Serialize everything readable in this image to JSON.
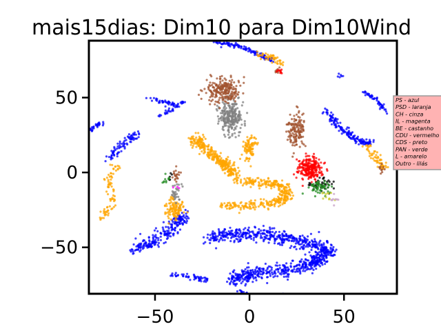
{
  "chart_data": {
    "type": "scatter",
    "title": "mais15dias: Dim10 para Dim10Wind",
    "xlabel": "",
    "ylabel": "",
    "xlim": [
      -85,
      78
    ],
    "ylim": [
      -81,
      88
    ],
    "xticks": [
      -50,
      0,
      50
    ],
    "yticks": [
      -50,
      0,
      50
    ],
    "xtick_labels": [
      "−50",
      "0",
      "50"
    ],
    "ytick_labels": [
      "−50",
      "0",
      "50"
    ],
    "grid": false,
    "legend_position": "right",
    "legend_background": "#ffb3b3",
    "series": [
      {
        "name": "PS - azul",
        "color": "#0000ff",
        "clusters": [
          {
            "kind": "arc",
            "points": [
              [
                -20,
                88
              ],
              [
                -5,
                84
              ],
              [
                5,
                79
              ],
              [
                12,
                75
              ]
            ],
            "n": 120,
            "spread": 1.2
          },
          {
            "kind": "arc",
            "points": [
              [
                -55,
                50
              ],
              [
                -45,
                47
              ],
              [
                -38,
                45
              ]
            ],
            "n": 40,
            "spread": 1.0
          },
          {
            "kind": "arc",
            "points": [
              [
                -48,
                38
              ],
              [
                -40,
                42
              ],
              [
                -35,
                47
              ]
            ],
            "n": 35,
            "spread": 1.0
          },
          {
            "kind": "arc",
            "points": [
              [
                -85,
                28
              ],
              [
                -80,
                32
              ],
              [
                -78,
                33
              ]
            ],
            "n": 30,
            "spread": 1.0
          },
          {
            "kind": "arc",
            "points": [
              [
                -75,
                8
              ],
              [
                -70,
                15
              ],
              [
                -64,
                22
              ],
              [
                -60,
                26
              ]
            ],
            "n": 80,
            "spread": 2.2
          },
          {
            "kind": "arc",
            "points": [
              [
                -62,
                -52
              ],
              [
                -50,
                -46
              ],
              [
                -40,
                -36
              ],
              [
                -34,
                -28
              ]
            ],
            "n": 220,
            "spread": 3.5
          },
          {
            "kind": "arc",
            "points": [
              [
                -22,
                -44
              ],
              [
                0,
                -40
              ],
              [
                25,
                -45
              ],
              [
                42,
                -52
              ],
              [
                30,
                -63
              ],
              [
                5,
                -67
              ],
              [
                -10,
                -72
              ]
            ],
            "n": 900,
            "spread": 3.8
          },
          {
            "kind": "arc",
            "points": [
              [
                -43,
                -68
              ],
              [
                -30,
                -70
              ],
              [
                -22,
                -72
              ]
            ],
            "n": 50,
            "spread": 1.5
          },
          {
            "kind": "arc",
            "points": [
              [
                -6,
                -80
              ],
              [
                10,
                -82
              ],
              [
                18,
                -82
              ]
            ],
            "n": 40,
            "spread": 1.3
          },
          {
            "kind": "arc",
            "points": [
              [
                40,
                42
              ],
              [
                45,
                33
              ],
              [
                52,
                26
              ],
              [
                58,
                21
              ],
              [
                64,
                20
              ]
            ],
            "n": 150,
            "spread": 1.8
          },
          {
            "kind": "arc",
            "points": [
              [
                60,
                54
              ],
              [
                68,
                48
              ],
              [
                72,
                40
              ]
            ],
            "n": 50,
            "spread": 1.0
          },
          {
            "kind": "blob",
            "center": [
              48,
              65
            ],
            "rx": 1.2,
            "ry": 1.2,
            "n": 6
          }
        ]
      },
      {
        "name": "PSD - laranja",
        "color": "#ffa500",
        "clusters": [
          {
            "kind": "arc",
            "points": [
              [
                -30,
                23
              ],
              [
                -25,
                18
              ],
              [
                -18,
                10
              ],
              [
                -13,
                5
              ],
              [
                -8,
                -2
              ]
            ],
            "n": 320,
            "spread": 3.0
          },
          {
            "kind": "arc",
            "points": [
              [
                -8,
                -5
              ],
              [
                10,
                -7
              ],
              [
                18,
                -10
              ],
              [
                20,
                -15
              ],
              [
                16,
                -20
              ],
              [
                0,
                -22
              ],
              [
                -15,
                -23
              ]
            ],
            "n": 360,
            "spread": 2.6
          },
          {
            "kind": "arc",
            "points": [
              [
                -78,
                -32
              ],
              [
                -72,
                -20
              ],
              [
                -75,
                -5
              ],
              [
                -70,
                5
              ]
            ],
            "n": 80,
            "spread": 2.0
          },
          {
            "kind": "blob",
            "center": [
              0,
              16
            ],
            "rx": 3.5,
            "ry": 7,
            "n": 90
          },
          {
            "kind": "blob",
            "center": [
              -40,
              -24
            ],
            "rx": 4.5,
            "ry": 6,
            "n": 110
          },
          {
            "kind": "arc",
            "points": [
              [
                5,
                79
              ],
              [
                12,
                77
              ],
              [
                18,
                72
              ]
            ],
            "n": 50,
            "spread": 1.8
          },
          {
            "kind": "arc",
            "points": [
              [
                62,
                19
              ],
              [
                67,
                10
              ],
              [
                71,
                2
              ]
            ],
            "n": 60,
            "spread": 2.2
          }
        ]
      },
      {
        "name": "CH - cinza",
        "color": "#808080",
        "clusters": [
          {
            "kind": "blob",
            "center": [
              -10,
              37
            ],
            "rx": 6,
            "ry": 11,
            "n": 260
          },
          {
            "kind": "blob",
            "center": [
              -39,
              -13
            ],
            "rx": 3,
            "ry": 6,
            "n": 30
          }
        ]
      },
      {
        "name": "IL - magenta",
        "color": "#ff00ff",
        "clusters": [
          {
            "kind": "blob",
            "center": [
              -38,
              -10
            ],
            "rx": 1.5,
            "ry": 2,
            "n": 3
          }
        ]
      },
      {
        "name": "BE - castanho",
        "color": "#a0522d",
        "clusters": [
          {
            "kind": "blob",
            "center": [
              -14,
              55
            ],
            "rx": 8,
            "ry": 7,
            "n": 220
          },
          {
            "kind": "blob",
            "center": [
              25,
              28
            ],
            "rx": 4,
            "ry": 11,
            "n": 140
          },
          {
            "kind": "blob",
            "center": [
              -39,
              -2
            ],
            "rx": 2.5,
            "ry": 4,
            "n": 20
          },
          {
            "kind": "blob",
            "center": [
              15,
              68
            ],
            "rx": 2,
            "ry": 2,
            "n": 10
          },
          {
            "kind": "blob",
            "center": [
              70,
              3
            ],
            "rx": 2,
            "ry": 3,
            "n": 10
          }
        ]
      },
      {
        "name": "CDU - vermelho",
        "color": "#ff0000",
        "clusters": [
          {
            "kind": "blob",
            "center": [
              32,
              3
            ],
            "rx": 6,
            "ry": 7,
            "n": 240
          },
          {
            "kind": "blob",
            "center": [
              16,
              68
            ],
            "rx": 2,
            "ry": 2,
            "n": 10
          }
        ]
      },
      {
        "name": "CDS - preto",
        "color": "#000000",
        "clusters": [
          {
            "kind": "blob",
            "center": [
              38,
              -8
            ],
            "rx": 5,
            "ry": 4,
            "n": 45
          },
          {
            "kind": "blob",
            "center": [
              -42,
              -5
            ],
            "rx": 2,
            "ry": 3,
            "n": 5
          }
        ]
      },
      {
        "name": "PAN - verde",
        "color": "#228b22",
        "clusters": [
          {
            "kind": "blob",
            "center": [
              37,
              -10
            ],
            "rx": 5,
            "ry": 4,
            "n": 55
          },
          {
            "kind": "blob",
            "center": [
              -44,
              -5
            ],
            "rx": 2.5,
            "ry": 3,
            "n": 10
          }
        ]
      },
      {
        "name": "L - amarelo",
        "color": "#cccc33",
        "clusters": [
          {
            "kind": "blob",
            "center": [
              42,
              -16
            ],
            "rx": 3,
            "ry": 3,
            "n": 12
          }
        ]
      },
      {
        "name": "Outro - lilás",
        "color": "#c8a2c8",
        "clusters": [
          {
            "kind": "blob",
            "center": [
              45,
              -18
            ],
            "rx": 3,
            "ry": 3,
            "n": 8
          }
        ]
      }
    ]
  }
}
